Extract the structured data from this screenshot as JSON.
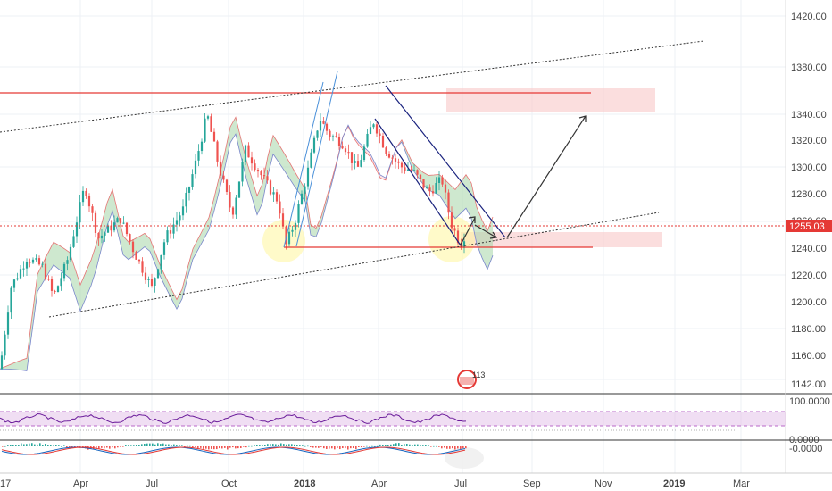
{
  "chart_data": {
    "type": "candlestick",
    "symbol_badge": "113",
    "price_axis": {
      "ylim": [
        1131,
        1432
      ],
      "ticks": [
        "1420.00",
        "1380.00",
        "1340.00",
        "1320.00",
        "1300.00",
        "1280.00",
        "1260.00",
        "1240.00",
        "1220.00",
        "1200.00",
        "1180.00",
        "1160.00",
        "1142.00"
      ],
      "last_price": "1255.03"
    },
    "time_axis": {
      "labels": [
        "17",
        "Apr",
        "Jul",
        "Oct",
        "2018",
        "Apr",
        "Jul",
        "Sep",
        "Nov",
        "2019",
        "Mar"
      ]
    },
    "rsi_panel": {
      "ticks": [
        "100.0000",
        "0.0000"
      ]
    },
    "macd_panel": {
      "ticks": [
        "-0.0000"
      ]
    },
    "levels": [
      {
        "name": "resistance",
        "price": 1356,
        "color": "#e53935"
      },
      {
        "name": "support",
        "price": 1239,
        "color": "#e53935"
      },
      {
        "name": "last-price",
        "price": 1255,
        "color": "#e53935"
      }
    ],
    "colors": {
      "up": "#26a69a",
      "down": "#ef5350",
      "cloud_bull": "#a5d6a7",
      "cloud_bear": "#ffcdd2",
      "channel": "#1a237e",
      "trend": "#333333",
      "rsi": "#7b1fa2",
      "zone": "#f8c8c8",
      "highlight": "#fff59d"
    }
  }
}
